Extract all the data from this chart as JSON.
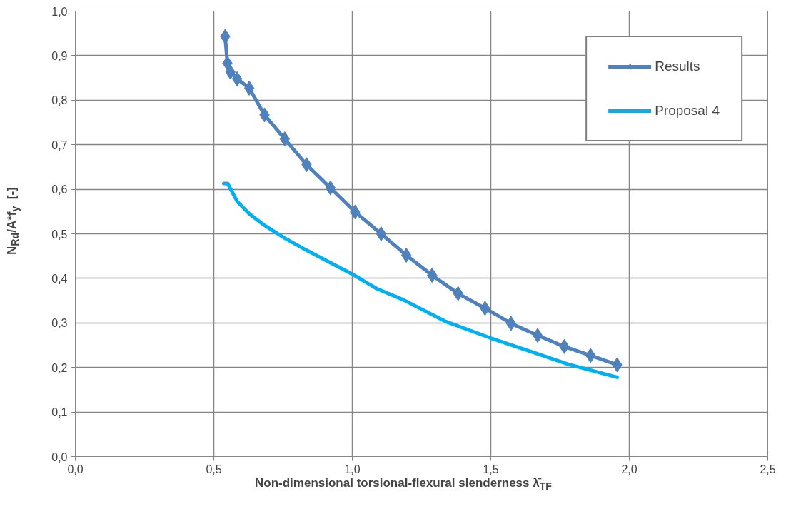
{
  "chart_data": {
    "type": "line",
    "xlabel": "Non-dimensional torsional-flexural slenderness λ̄$_{TF}$",
    "ylabel": "N$_{Rd}$/A*f$_{y}$   [-]",
    "xlim": [
      0,
      2.5
    ],
    "xticks": [
      {
        "value": 0,
        "label": "0,0"
      },
      {
        "value": 0.5,
        "label": "0,5"
      },
      {
        "value": 1,
        "label": "1,0"
      },
      {
        "value": 1.5,
        "label": "1,5"
      },
      {
        "value": 2,
        "label": "2,0"
      },
      {
        "value": 2.5,
        "label": "2,5"
      }
    ],
    "ylim": [
      0,
      1
    ],
    "yticks": [
      {
        "value": 0,
        "label": "0,0"
      },
      {
        "value": 0.1,
        "label": "0,1"
      },
      {
        "value": 0.2,
        "label": "0,2"
      },
      {
        "value": 0.3,
        "label": "0,3"
      },
      {
        "value": 0.4,
        "label": "0,4"
      },
      {
        "value": 0.5,
        "label": "0,5"
      },
      {
        "value": 0.6,
        "label": "0,6"
      },
      {
        "value": 0.7,
        "label": "0,7"
      },
      {
        "value": 0.8,
        "label": "0,8"
      },
      {
        "value": 0.9,
        "label": "0,9"
      },
      {
        "value": 1,
        "label": "1,0"
      }
    ],
    "grid": true,
    "legend": "top right",
    "line_style": "solid",
    "series": [
      {
        "name": "Results",
        "color": "#4f81bd",
        "marker": "diamond",
        "x": [
          0.541,
          0.549,
          0.56,
          0.584,
          0.628,
          0.683,
          0.756,
          0.835,
          0.921,
          1.01,
          1.104,
          1.195,
          1.288,
          1.382,
          1.479,
          1.573,
          1.669,
          1.765,
          1.86,
          1.956
        ],
        "values": [
          0.943,
          0.883,
          0.863,
          0.848,
          0.827,
          0.767,
          0.713,
          0.655,
          0.603,
          0.549,
          0.5,
          0.452,
          0.407,
          0.366,
          0.333,
          0.299,
          0.272,
          0.247,
          0.227,
          0.206
        ]
      },
      {
        "name": "Proposal 4",
        "color": "#00b0f0",
        "marker": "none",
        "x": [
          0.536,
          0.55,
          0.584,
          0.628,
          0.683,
          0.754,
          0.835,
          0.921,
          0.999,
          1.088,
          1.184,
          1.338,
          1.5,
          1.662,
          1.781,
          1.956
        ],
        "values": [
          0.613,
          0.613,
          0.573,
          0.545,
          0.519,
          0.491,
          0.463,
          0.435,
          0.41,
          0.377,
          0.352,
          0.303,
          0.266,
          0.232,
          0.207,
          0.178
        ]
      }
    ]
  }
}
